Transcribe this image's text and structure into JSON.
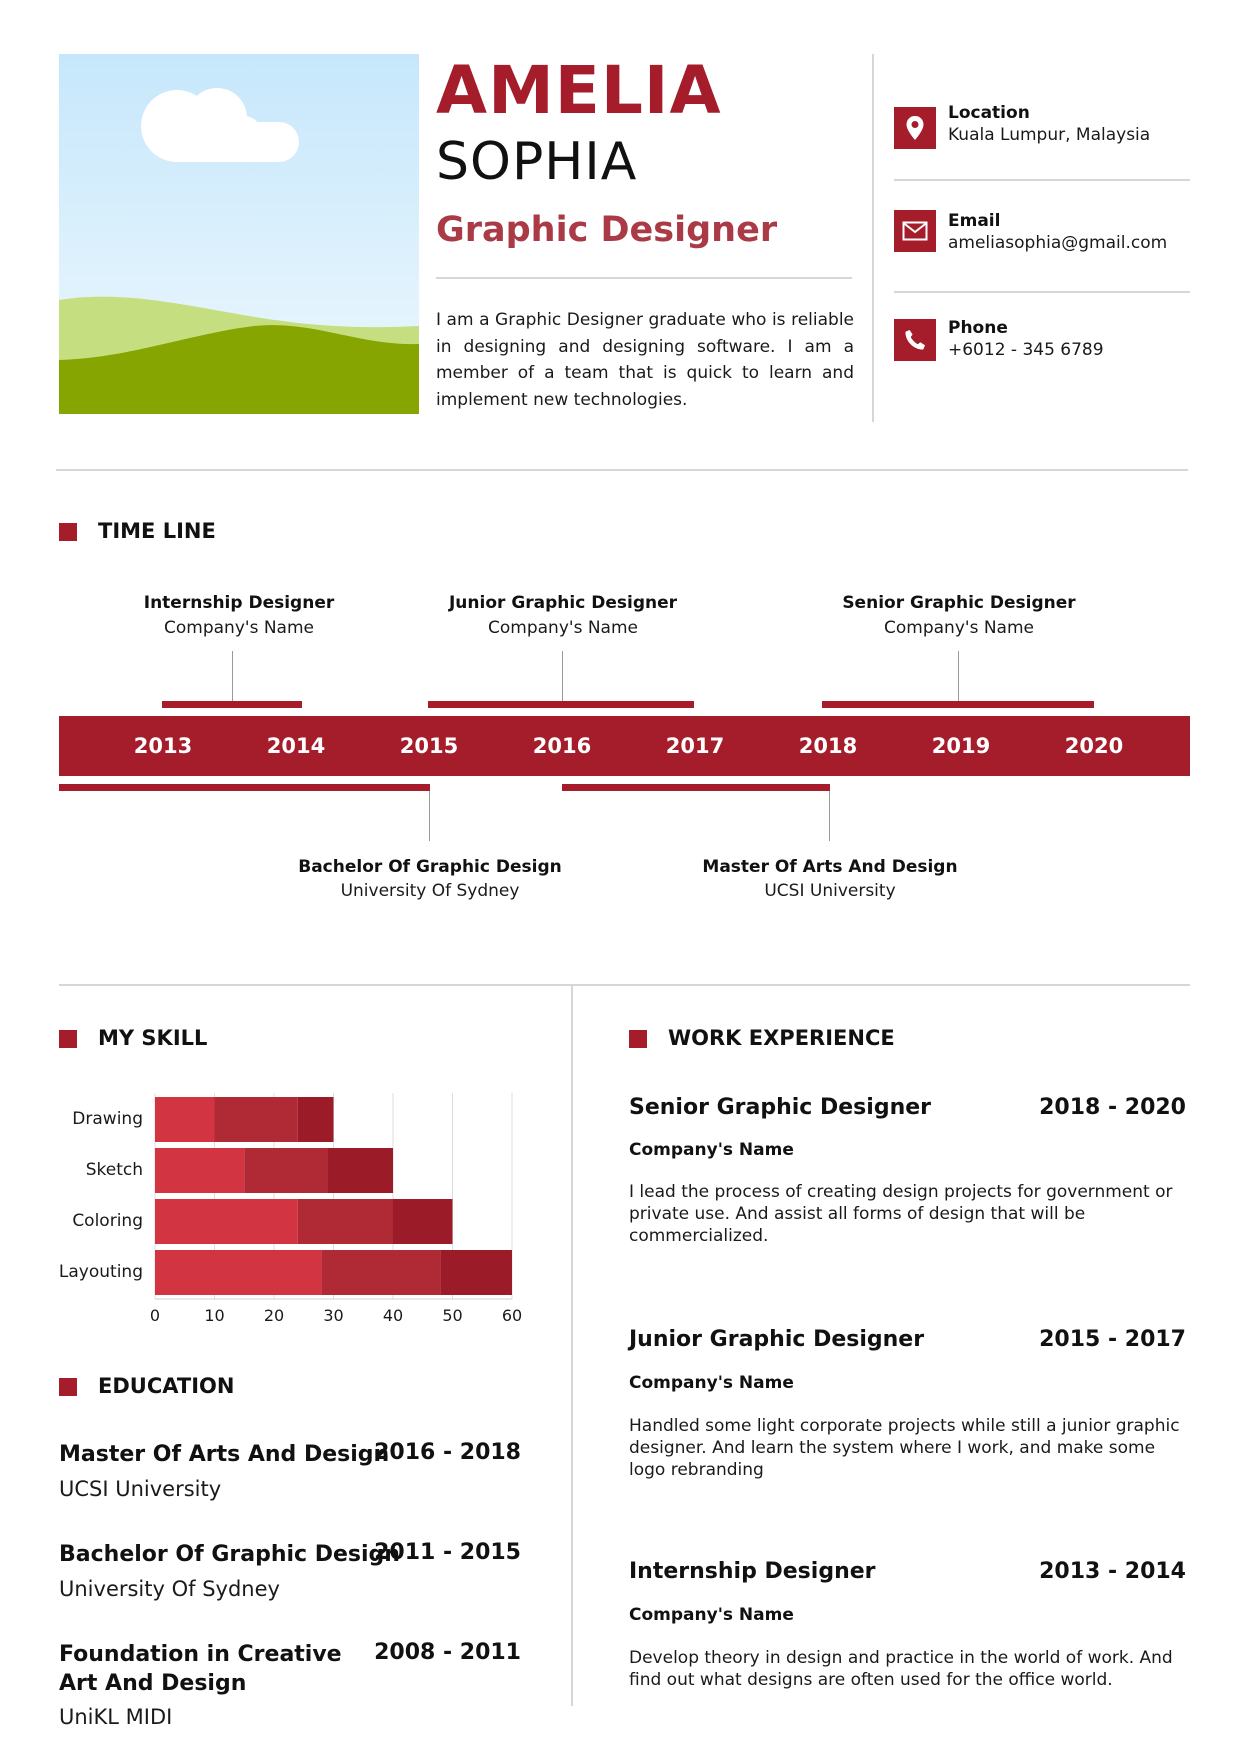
{
  "header": {
    "first_name": "AMELIA",
    "last_name": "SOPHIA",
    "role": "Graphic Designer",
    "summary": "I am a Graphic Designer graduate who is reliable in designing and designing software. I am a member of a team that is quick to learn and implement new technologies."
  },
  "contact": {
    "location_label": "Location",
    "location_value": "Kuala Lumpur, Malaysia",
    "email_label": "Email",
    "email_value": "ameliasophia@gmail.com",
    "phone_label": "Phone",
    "phone_value": "+6012 - 345 6789"
  },
  "timeline": {
    "title": "TIME LINE",
    "years": [
      "2013",
      "2014",
      "2015",
      "2016",
      "2017",
      "2018",
      "2019",
      "2020"
    ],
    "above": [
      {
        "title": "Internship Designer",
        "subtitle": "Company's Name"
      },
      {
        "title": "Junior Graphic Designer",
        "subtitle": "Company's Name"
      },
      {
        "title": "Senior Graphic Designer",
        "subtitle": "Company's Name"
      }
    ],
    "below": [
      {
        "title": "Bachelor Of Graphic Design",
        "subtitle": "University Of Sydney"
      },
      {
        "title": "Master Of Arts And Design",
        "subtitle": "UCSI University"
      }
    ]
  },
  "skills": {
    "title": "MY SKILL"
  },
  "chart_data": {
    "type": "bar",
    "orientation": "horizontal",
    "stacked": true,
    "categories": [
      "Drawing",
      "Sketch",
      "Coloring",
      "Layouting"
    ],
    "series": [
      {
        "values": [
          10,
          15,
          24,
          28
        ],
        "color": "#d23442"
      },
      {
        "values": [
          14,
          14,
          16,
          20
        ],
        "color": "#b02a36"
      },
      {
        "values": [
          6,
          11,
          10,
          12
        ],
        "color": "#9b1b28"
      }
    ],
    "xlim": [
      0,
      60
    ],
    "xticks": [
      "0",
      "10",
      "20",
      "30",
      "40",
      "50",
      "60"
    ],
    "grid": true,
    "legend": "none"
  },
  "education": {
    "title": "EDUCATION",
    "items": [
      {
        "title_line1": "Master Of Arts And Design",
        "title_line2": "",
        "years": "2016 - 2018",
        "school": "UCSI University"
      },
      {
        "title_line1": "Bachelor Of Graphic Design",
        "title_line2": "",
        "years": "2011 - 2015",
        "school": "University Of Sydney"
      },
      {
        "title_line1": "Foundation in Creative",
        "title_line2": "Art And Design",
        "years": "2008 - 2011",
        "school": "UniKL MIDI"
      }
    ]
  },
  "work": {
    "title": "WORK EXPERIENCE",
    "items": [
      {
        "title": "Senior Graphic Designer",
        "years": "2018 - 2020",
        "company": "Company's Name",
        "desc": "I lead the process of creating design projects for government or private use. And assist all forms of design that will be commercialized."
      },
      {
        "title": "Junior Graphic Designer",
        "years": "2015 - 2017",
        "company": "Company's Name",
        "desc": "Handled some light corporate projects while still a junior graphic designer. And learn the system where I work, and make some logo rebranding"
      },
      {
        "title": "Internship Designer",
        "years": "2013 - 2014",
        "company": "Company's Name",
        "desc": "Develop theory in design and practice in the world of work. And find out what designs are often used for the office world."
      }
    ]
  },
  "icons": {
    "location": "location-pin-icon",
    "email": "envelope-icon",
    "phone": "phone-icon",
    "photo": "landscape-placeholder-image"
  },
  "colors": {
    "accent": "#a51c2a",
    "role": "#a93a46"
  }
}
